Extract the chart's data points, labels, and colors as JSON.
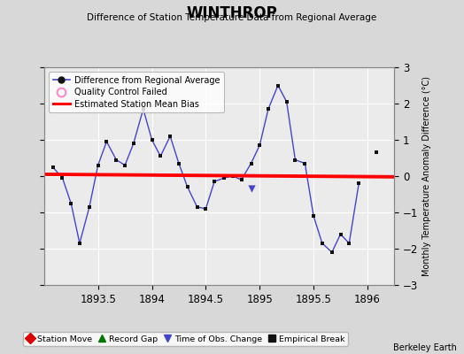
{
  "title": "WINTHROP",
  "subtitle": "Difference of Station Temperature Data from Regional Average",
  "ylabel_right": "Monthly Temperature Anomaly Difference (°C)",
  "credit": "Berkeley Earth",
  "xlim": [
    1893.0,
    1896.25
  ],
  "ylim": [
    -3,
    3
  ],
  "yticks": [
    -3,
    -2,
    -1,
    0,
    1,
    2,
    3
  ],
  "xticks": [
    1893.5,
    1894,
    1894.5,
    1895,
    1895.5,
    1896
  ],
  "xticklabels": [
    "1893.5",
    "1894",
    "1894.5",
    "1895",
    "1895.5",
    "1896"
  ],
  "background_color": "#d8d8d8",
  "plot_background_color": "#ebebeb",
  "grid_color": "#ffffff",
  "line_color": "#4444cc",
  "line_marker_color": "#111111",
  "bias_line_color": "#ff0000",
  "bias_line_x": [
    1893.0,
    1896.25
  ],
  "bias_line_y": [
    0.05,
    -0.02
  ],
  "x_data": [
    1893.08,
    1893.17,
    1893.25,
    1893.33,
    1893.42,
    1893.5,
    1893.58,
    1893.67,
    1893.75,
    1893.83,
    1893.92,
    1894.0,
    1894.08,
    1894.17,
    1894.25,
    1894.33,
    1894.42,
    1894.5,
    1894.58,
    1894.67,
    1894.75,
    1894.83,
    1894.92,
    1895.0,
    1895.08,
    1895.17,
    1895.25,
    1895.33,
    1895.42,
    1895.5,
    1895.58,
    1895.67,
    1895.75,
    1895.83,
    1895.92
  ],
  "y_data": [
    0.25,
    -0.05,
    -0.75,
    -1.85,
    -0.85,
    0.3,
    0.95,
    0.45,
    0.3,
    0.9,
    1.85,
    1.0,
    0.55,
    1.1,
    0.35,
    -0.3,
    -0.85,
    -0.9,
    -0.15,
    -0.05,
    0.0,
    -0.1,
    0.35,
    0.85,
    1.85,
    2.5,
    2.05,
    0.45,
    0.35,
    -1.1,
    -1.85,
    -2.1,
    -1.6,
    -1.85,
    -0.2
  ],
  "isolated_x": [
    1896.08
  ],
  "isolated_y": [
    0.65
  ],
  "time_obs_change_x": [
    1894.92
  ],
  "time_obs_change_y": [
    -0.35
  ],
  "legend_line_label": "Difference from Regional Average",
  "legend_qc_label": "Quality Control Failed",
  "legend_bias_label": "Estimated Station Mean Bias",
  "bottom_legend": [
    {
      "label": "Station Move",
      "color": "#dd0000",
      "marker": "D",
      "mfc": "#dd0000"
    },
    {
      "label": "Record Gap",
      "color": "#007700",
      "marker": "^",
      "mfc": "#007700"
    },
    {
      "label": "Time of Obs. Change",
      "color": "#4444cc",
      "marker": "v",
      "mfc": "#4444cc"
    },
    {
      "label": "Empirical Break",
      "color": "#111111",
      "marker": "s",
      "mfc": "#111111"
    }
  ]
}
